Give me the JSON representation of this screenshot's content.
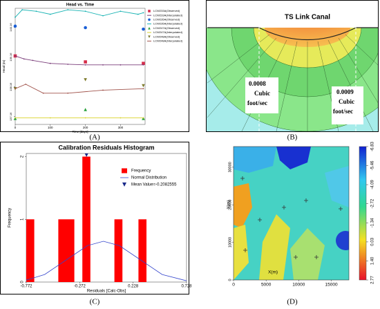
{
  "captions": [
    "(A)",
    "(B)",
    "(C)",
    "(D)"
  ],
  "diagram": {
    "title": "TS Link Canal",
    "flow_labels": [
      {
        "lines": [
          "0.0008",
          "Cubic",
          "foot/sec"
        ]
      },
      {
        "lines": [
          "0.0009",
          "Cubic",
          "foot/sec"
        ]
      }
    ]
  },
  "chart_data": [
    {
      "type": "line",
      "title": "Head vs. Time",
      "x_label": "Time [days]",
      "y_label": "Head (m)",
      "xlim": [
        0,
        370
      ],
      "xticks": [
        0,
        100,
        200,
        300
      ],
      "ylim": [
        136.9,
        140.8
      ],
      "yticks": [
        137.16,
        138.16,
        139.16,
        140.16
      ],
      "series": [
        {
          "name": "LCW233A(Observed)",
          "color": "#d62c4a",
          "marker": "square",
          "x": [
            0,
            200,
            365
          ],
          "values": [
            139.2,
            139.0,
            138.95
          ]
        },
        {
          "name": "LCW233A(Interpolated)",
          "color": "#7a3d7a",
          "x": [
            0,
            25,
            50,
            100,
            150,
            200,
            250,
            300,
            365
          ],
          "values": [
            139.2,
            139.1,
            139.05,
            138.95,
            138.92,
            138.9,
            138.9,
            138.9,
            138.9
          ]
        },
        {
          "name": "LCW235A(Observed)",
          "color": "#1a5fd6",
          "marker": "circle",
          "x": [
            0,
            200,
            365
          ],
          "values": [
            140.2,
            140.15,
            140.1
          ]
        },
        {
          "name": "LCW235A(Interpolated)",
          "color": "#19b3b3",
          "x": [
            0,
            20,
            60,
            100,
            150,
            200,
            250,
            300,
            350,
            365
          ],
          "values": [
            140.5,
            140.75,
            140.7,
            140.6,
            140.75,
            140.7,
            140.55,
            140.7,
            140.6,
            140.65
          ]
        },
        {
          "name": "LCW247A(Observed)",
          "color": "#27a13a",
          "marker": "triangle",
          "x": [
            0,
            200,
            365
          ],
          "values": [
            137.1,
            137.4,
            137.1
          ]
        },
        {
          "name": "LCW247A(Interpolated)",
          "color": "#d9d22a",
          "x": [
            0,
            100,
            200,
            300,
            365
          ],
          "values": [
            137.12,
            137.12,
            137.12,
            137.12,
            137.12
          ]
        },
        {
          "name": "LCW248A(Observed)",
          "color": "#7d7a2a",
          "marker": "triangle-down",
          "x": [
            0,
            200,
            365
          ],
          "values": [
            138.1,
            138.4,
            138.2
          ]
        },
        {
          "name": "LCW248A(Interpolated)",
          "color": "#a0524a",
          "x": [
            0,
            30,
            80,
            150,
            250,
            365
          ],
          "values": [
            138.1,
            138.25,
            137.95,
            137.95,
            138.05,
            138.1
          ]
        }
      ]
    },
    {
      "type": "histogram",
      "title": "Calibration Residuals Histogram",
      "x_label": "Residuals [Calc-Obs]",
      "y_label": "Frequency",
      "xlim": [
        -0.772,
        0.728
      ],
      "xticks": [
        -0.772,
        -0.272,
        0.228,
        0.728
      ],
      "ylim": [
        0,
        2.05
      ],
      "yticks": [
        0,
        1,
        2
      ],
      "bins": [
        -0.772,
        -0.697,
        -0.622,
        -0.547,
        -0.472,
        -0.397,
        -0.322,
        -0.247,
        -0.172,
        -0.097,
        -0.022,
        0.053,
        0.128,
        0.203,
        0.278,
        0.353,
        0.428,
        0.503,
        0.578,
        0.653,
        0.728
      ],
      "counts": [
        1,
        0,
        0,
        0,
        1,
        1,
        0,
        2,
        0,
        0,
        0,
        1,
        0,
        0,
        1,
        0,
        0,
        0,
        0,
        0
      ],
      "series": [
        {
          "name": "Frequency",
          "color": "#ff0000"
        },
        {
          "name": "Normal Distribution",
          "color": "#3344cc",
          "x": [
            -0.772,
            -0.6,
            -0.4,
            -0.2,
            -0.05,
            0.1,
            0.3,
            0.5,
            0.728
          ],
          "values": [
            0.03,
            0.12,
            0.35,
            0.58,
            0.65,
            0.58,
            0.35,
            0.12,
            0.02
          ]
        },
        {
          "name": "Mean Value=-0.2082555",
          "color": "#1a2a8a",
          "marker": "triangle-down",
          "x": [
            -0.2082555
          ],
          "values": [
            2
          ]
        }
      ]
    },
    {
      "type": "contour",
      "x_label": "X(m)",
      "y_label": "Y(m)",
      "xlim": [
        0,
        17700
      ],
      "xticks": [
        0,
        5000,
        10000,
        15000
      ],
      "ylim": [
        0,
        35500
      ],
      "yticks": [
        0,
        10000,
        20000,
        30000
      ],
      "clim": [
        -6.83,
        2.77
      ],
      "cticks": [
        -6.83,
        -5.46,
        -4.09,
        -2.72,
        -1.34,
        0.03,
        {
          "value": 1.4,
          "label": "1.40"
        },
        2.77
      ]
    }
  ]
}
